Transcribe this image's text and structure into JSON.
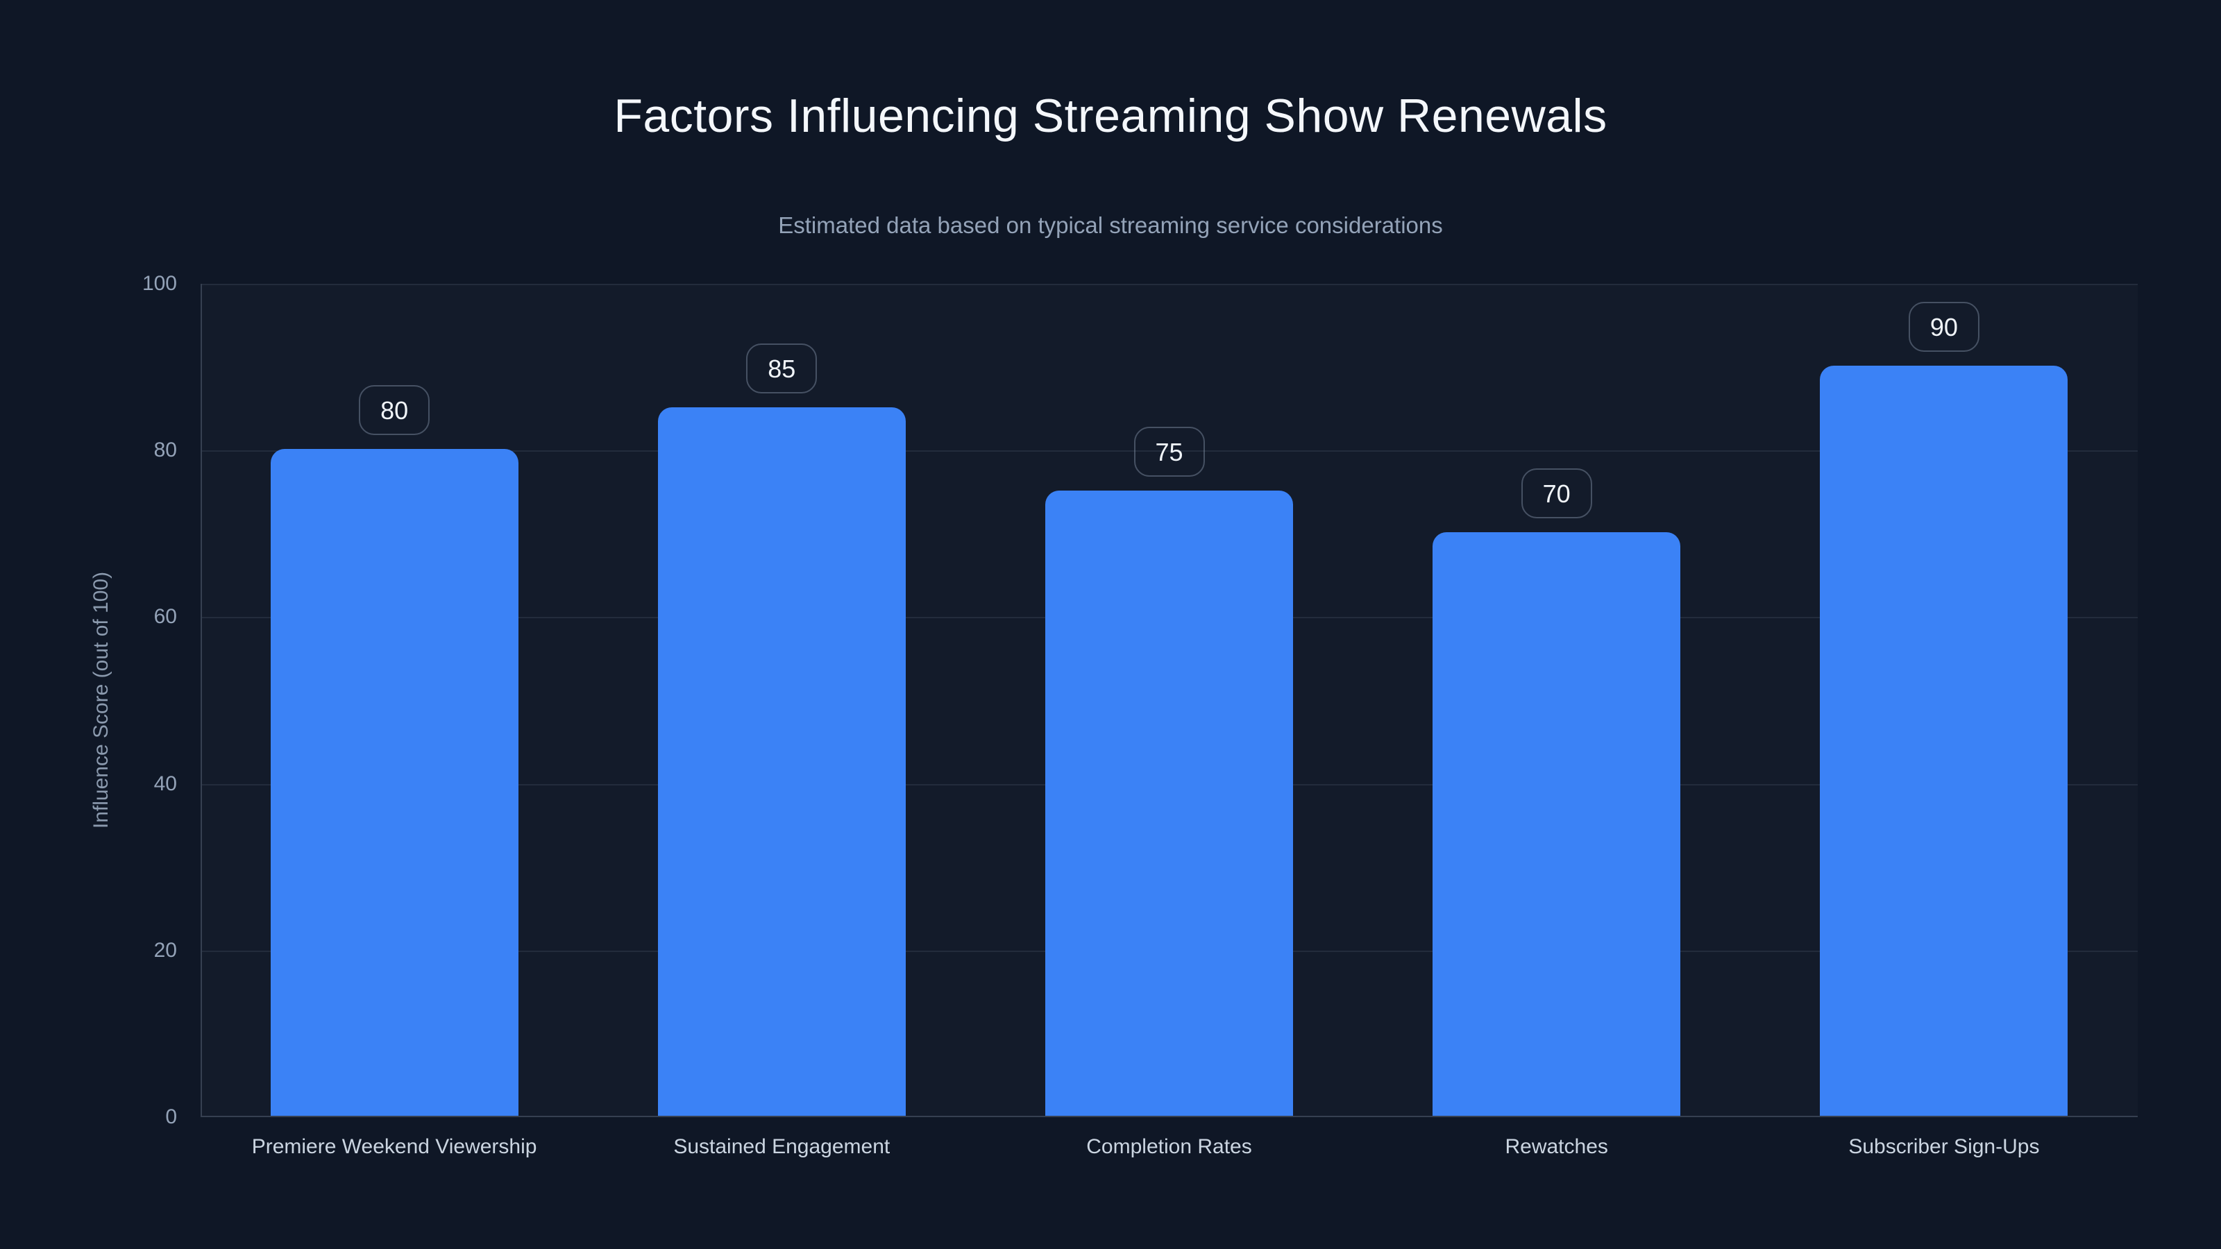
{
  "page": {
    "background_color": "#0f1726",
    "accent_color": "#3b82f6",
    "text_primary_color": "#f4f7fb",
    "text_muted_color": "#94a3b8"
  },
  "chart_data": {
    "type": "bar",
    "title": "Factors Influencing Streaming Show Renewals",
    "subtitle": "Estimated data based on typical streaming service considerations",
    "categories": [
      "Premiere Weekend Viewership",
      "Sustained Engagement",
      "Completion Rates",
      "Rewatches",
      "Subscriber Sign-Ups"
    ],
    "values": [
      80,
      85,
      75,
      70,
      90
    ],
    "value_labels_shown": true,
    "xlabel": "",
    "ylabel": "Influence Score (out of 100)",
    "ylim": [
      0,
      100
    ],
    "yticks": [
      0,
      20,
      40,
      60,
      80,
      100
    ],
    "grid": "horizontal",
    "legend": "none",
    "bar_color": "#3b82f6"
  }
}
